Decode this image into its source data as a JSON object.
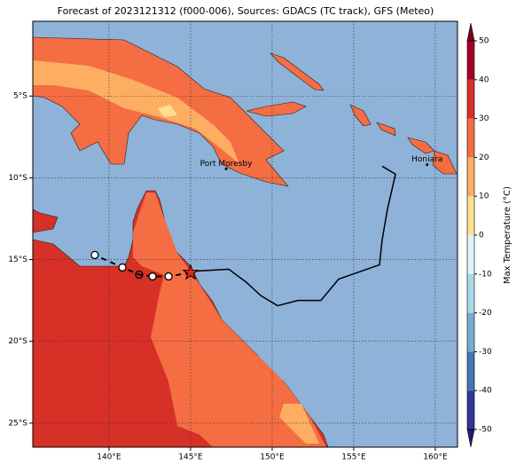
{
  "title": "Forecast of 2023121312 (f000-006), Sources: GDACS (TC track), GFS (Meteo)",
  "map": {
    "xlim": [
      135.33,
      161.36
    ],
    "ylim": [
      -26.47,
      -0.43
    ],
    "xticks": [
      {
        "value": 140,
        "label": "140°E"
      },
      {
        "value": 145,
        "label": "145°E"
      },
      {
        "value": 150,
        "label": "150°E"
      },
      {
        "value": 155,
        "label": "155°E"
      },
      {
        "value": 160,
        "label": "160°E"
      }
    ],
    "yticks": [
      {
        "value": -5,
        "label": "5°S"
      },
      {
        "value": -10,
        "label": "10°S"
      },
      {
        "value": -15,
        "label": "15°S"
      },
      {
        "value": -20,
        "label": "20°S"
      },
      {
        "value": -25,
        "label": "25°S"
      }
    ],
    "grid": true,
    "ocean_color": "#8fb2d8"
  },
  "colorbar": {
    "label": "Max Temperature (°C)",
    "lim": [
      -50,
      50
    ],
    "ticks": [
      50,
      40,
      30,
      20,
      10,
      0,
      -10,
      -20,
      -30,
      -40,
      -50
    ],
    "levels": [
      -50,
      -40,
      -30,
      -20,
      -10,
      0,
      10,
      20,
      30,
      40,
      50
    ],
    "colors": [
      "#313695",
      "#4575b4",
      "#74add1",
      "#abd9e9",
      "#e0f3f8",
      "#fee090",
      "#fdae61",
      "#f46d43",
      "#d73027",
      "#a50026"
    ],
    "under_color": "#1f1f6e",
    "over_color": "#7a0020"
  },
  "places": [
    {
      "name": "Port Moresby",
      "lon": 147.18,
      "lat": -9.45
    },
    {
      "name": "Honiara",
      "lon": 159.5,
      "lat": -9.2
    }
  ],
  "track": {
    "lon": [
      156.74,
      157.56,
      157.07,
      156.74,
      156.58,
      155.5,
      154.08,
      152.99,
      151.58,
      150.33,
      149.3,
      148.43,
      147.34,
      145.4,
      145.0
    ],
    "lat": [
      -9.29,
      -9.78,
      -11.9,
      -13.8,
      -15.32,
      -15.7,
      -16.19,
      -17.5,
      -17.5,
      -17.82,
      -17.2,
      -16.4,
      -15.59,
      -15.7,
      -15.8
    ]
  },
  "storm_position": {
    "lon": 145.0,
    "lat": -15.8
  },
  "forecast": {
    "lon": [
      143.65,
      142.67,
      141.85,
      140.82,
      139.13
    ],
    "lat": [
      -16.03,
      -16.03,
      -15.92,
      -15.48,
      -14.72
    ]
  }
}
